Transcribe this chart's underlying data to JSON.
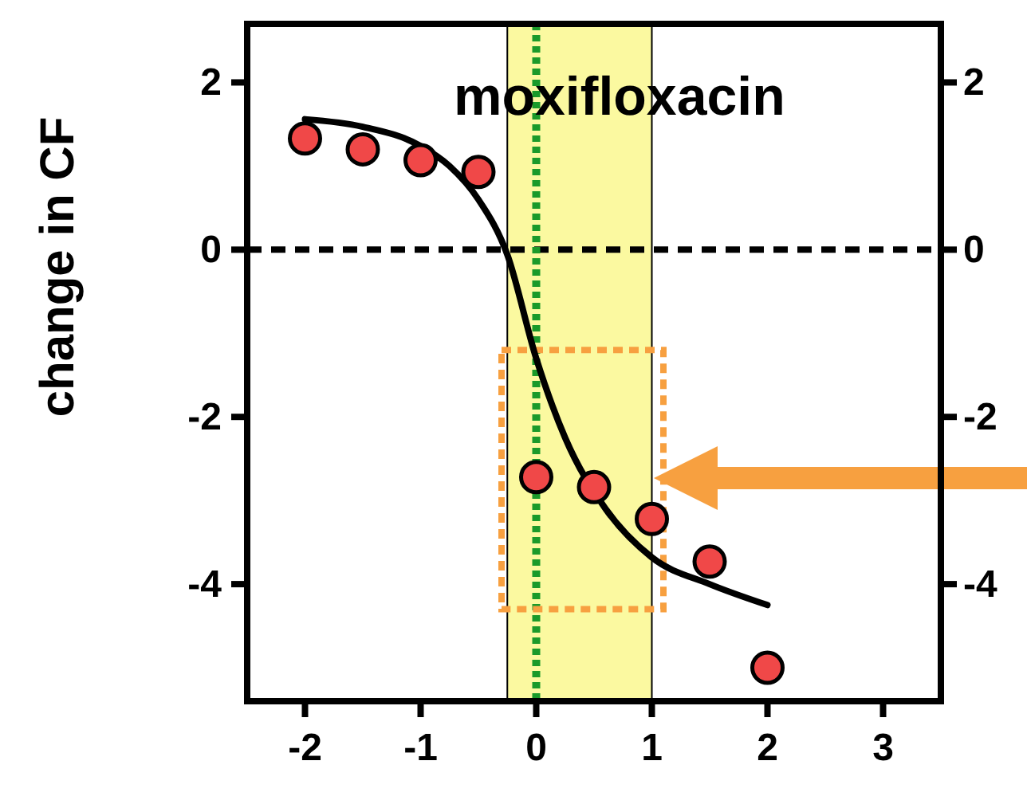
{
  "chart_data": {
    "type": "scatter",
    "ylabel": "change in CF",
    "xlim": [
      -2.5,
      3.5
    ],
    "xticks": [
      -2,
      -1,
      0,
      1,
      2,
      3
    ],
    "ylim": [
      -5.4,
      2.7
    ],
    "yticks": [
      -4,
      -2,
      0,
      2
    ],
    "y2lim": [
      -5.4,
      2.7
    ],
    "y2ticks": [
      -4,
      -2,
      0,
      2
    ],
    "grid": false,
    "series": [
      {
        "type": "line",
        "marker": "none",
        "color": "#000000",
        "x": [
          -2,
          -1.5,
          -1,
          -0.75,
          -0.5,
          -0.25,
          0,
          0.25,
          0.6,
          1,
          1.5,
          2
        ],
        "values": [
          1.56,
          1.47,
          1.24,
          1.0,
          0.6,
          -0.06,
          -1.3,
          -2.25,
          -3.1,
          -3.68,
          -4.0,
          -4.25
        ]
      },
      {
        "marker": "circle",
        "color": "#f04848",
        "x": [
          -2,
          -1.5,
          -1,
          -0.5,
          0,
          0.5,
          1,
          1.5,
          2
        ],
        "values": [
          1.33,
          1.2,
          1.07,
          0.93,
          -2.72,
          -2.84,
          -3.22,
          -3.73,
          -5.0
        ]
      }
    ],
    "ref_lines": [
      {
        "axis": "y",
        "value": 0,
        "color": "#000000",
        "line_style": "dashed"
      },
      {
        "axis": "x",
        "value": 0,
        "color": "#1a9a2a",
        "line_style": "dotted"
      }
    ],
    "bands": [
      {
        "axis": "x",
        "from": -0.25,
        "to": 1,
        "label": "moxifloxacin",
        "color": "#fbf9a0"
      }
    ]
  }
}
